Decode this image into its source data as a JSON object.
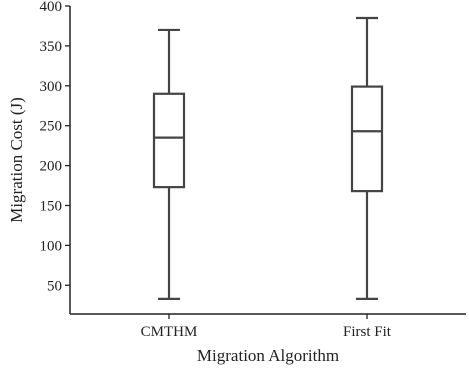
{
  "chart_data": {
    "type": "boxplot",
    "xlabel": "Migration Algorithm",
    "ylabel": "Migration Cost (J)",
    "categories": [
      "CMTHM",
      "First Fit"
    ],
    "boxes": [
      {
        "category": "CMTHM",
        "min": 33,
        "q1": 173,
        "median": 235,
        "q3": 290,
        "max": 370
      },
      {
        "category": "First Fit",
        "min": 33,
        "q1": 168,
        "median": 243,
        "q3": 299,
        "max": 385
      }
    ],
    "y_ticks": [
      50,
      100,
      150,
      200,
      250,
      300,
      350,
      400
    ],
    "ylim": [
      14,
      400
    ],
    "grid": false,
    "colors": {
      "box_stroke": "#444444",
      "axis": "#222222",
      "text": "#222222"
    }
  }
}
